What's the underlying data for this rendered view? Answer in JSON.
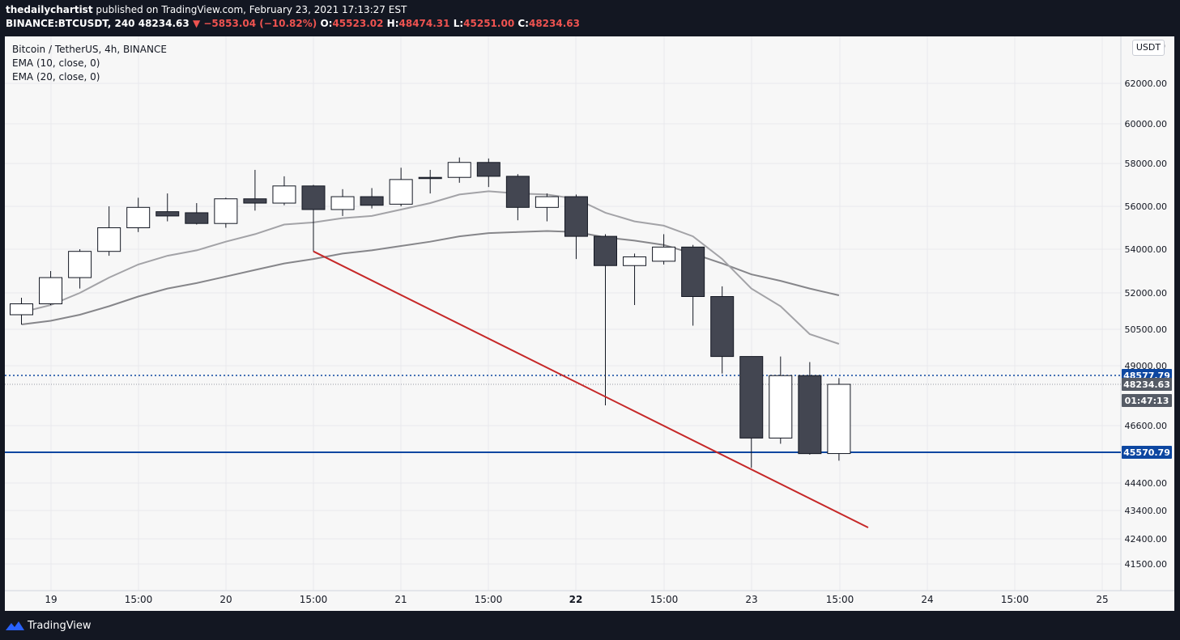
{
  "header": {
    "author": "thedailychartist",
    "published_text": "published on TradingView.com, February 23, 2021 17:13:27 EST",
    "symbol_line": "BINANCE:BTCUSDT, 240",
    "last_price": "48234.63",
    "change": "−5853.04 (−10.82%)",
    "open_label": "O:",
    "open": "45523.02",
    "high_label": "H:",
    "high": "48474.31",
    "low_label": "L:",
    "low": "45251.00",
    "close_label": "C:",
    "close": "48234.63"
  },
  "legend": {
    "title": "Bitcoin / TetherUS, 4h, BINANCE",
    "ema10": "EMA (10, close, 0)",
    "ema20": "EMA (20, close, 0)"
  },
  "unit_label": "USDT",
  "footer": {
    "brand": "TradingView"
  },
  "colors": {
    "up_body": "#ffffff",
    "down_body": "#434651",
    "ema10": "#a3a3a7",
    "ema20": "#86868a",
    "trendline": "#c62828",
    "support_line": "#0d47a1",
    "resistance_line": "#0d47a1"
  },
  "chart_data": {
    "type": "candlestick",
    "interval": "4h",
    "x_tick_labels": [
      "19",
      "15:00",
      "20",
      "15:00",
      "21",
      "15:00",
      "22",
      "15:00",
      "23",
      "15:00",
      "24",
      "15:00",
      "25"
    ],
    "y_tick_labels": [
      "62000.00",
      "60000.00",
      "58000.00",
      "56000.00",
      "54000.00",
      "52000.00",
      "50500.00",
      "49000.00",
      "46600.00",
      "44400.00",
      "43400.00",
      "42400.00",
      "41500.00"
    ],
    "price_tags": [
      {
        "label": "48577.79",
        "value": 48577.79,
        "color": "#0d47a1"
      },
      {
        "label": "48234.63",
        "value": 48234.63,
        "color": "#555b66"
      },
      {
        "label": "01:47:13",
        "value": 47200,
        "color": "#555b66"
      },
      {
        "label": "45570.79",
        "value": 45570.79,
        "color": "#0d47a1"
      }
    ],
    "candles": [
      {
        "o": 51100,
        "h": 51800,
        "l": 50700,
        "c": 51550
      },
      {
        "o": 51550,
        "h": 53000,
        "l": 51500,
        "c": 52700
      },
      {
        "o": 52700,
        "h": 54000,
        "l": 52200,
        "c": 53900
      },
      {
        "o": 53900,
        "h": 56000,
        "l": 53700,
        "c": 55000
      },
      {
        "o": 55000,
        "h": 56400,
        "l": 54800,
        "c": 55950
      },
      {
        "o": 55750,
        "h": 56600,
        "l": 55300,
        "c": 55550
      },
      {
        "o": 55700,
        "h": 56150,
        "l": 55150,
        "c": 55200
      },
      {
        "o": 55200,
        "h": 56400,
        "l": 55000,
        "c": 56350
      },
      {
        "o": 56350,
        "h": 57700,
        "l": 55800,
        "c": 56150
      },
      {
        "o": 56150,
        "h": 57400,
        "l": 56050,
        "c": 56950
      },
      {
        "o": 56950,
        "h": 57000,
        "l": 53900,
        "c": 55850
      },
      {
        "o": 55850,
        "h": 56800,
        "l": 55550,
        "c": 56450
      },
      {
        "o": 56450,
        "h": 56850,
        "l": 55900,
        "c": 56050
      },
      {
        "o": 56100,
        "h": 57800,
        "l": 56000,
        "c": 57250
      },
      {
        "o": 57350,
        "h": 57700,
        "l": 56600,
        "c": 57300
      },
      {
        "o": 57350,
        "h": 58300,
        "l": 57100,
        "c": 58050
      },
      {
        "o": 58050,
        "h": 58250,
        "l": 56900,
        "c": 57400
      },
      {
        "o": 57400,
        "h": 57500,
        "l": 55350,
        "c": 55950
      },
      {
        "o": 55950,
        "h": 56600,
        "l": 55300,
        "c": 56450
      },
      {
        "o": 56450,
        "h": 56550,
        "l": 53550,
        "c": 54600
      },
      {
        "o": 54600,
        "h": 54700,
        "l": 47400,
        "c": 53250
      },
      {
        "o": 53250,
        "h": 53800,
        "l": 51500,
        "c": 53650
      },
      {
        "o": 53450,
        "h": 54700,
        "l": 53300,
        "c": 54100
      },
      {
        "o": 54100,
        "h": 54200,
        "l": 50650,
        "c": 51850
      },
      {
        "o": 51850,
        "h": 52300,
        "l": 48660,
        "c": 49380
      },
      {
        "o": 49380,
        "h": 49380,
        "l": 44980,
        "c": 46120
      },
      {
        "o": 46120,
        "h": 49380,
        "l": 45900,
        "c": 48570
      },
      {
        "o": 48570,
        "h": 49150,
        "l": 45480,
        "c": 45520
      },
      {
        "o": 45523.02,
        "h": 48474.31,
        "l": 45251.0,
        "c": 48234.63
      }
    ],
    "ema10": [
      51200,
      51500,
      52000,
      52700,
      53300,
      53700,
      53950,
      54350,
      54700,
      55150,
      55250,
      55450,
      55550,
      55850,
      56150,
      56550,
      56700,
      56600,
      56550,
      56350,
      55700,
      55300,
      55100,
      54600,
      53550,
      52200,
      51450,
      50300,
      49900
    ],
    "ema20": [
      50700,
      50850,
      51100,
      51450,
      51850,
      52200,
      52450,
      52750,
      53050,
      53350,
      53550,
      53800,
      53950,
      54150,
      54350,
      54600,
      54750,
      54800,
      54850,
      54800,
      54550,
      54400,
      54200,
      53800,
      53350,
      52850,
      52550,
      52200,
      51900
    ],
    "trendline": {
      "from": {
        "index": 10,
        "price": 53900
      },
      "to": {
        "index": 29,
        "price": 42800
      }
    },
    "horizontal_lines": [
      48577.79,
      45570.79
    ]
  }
}
